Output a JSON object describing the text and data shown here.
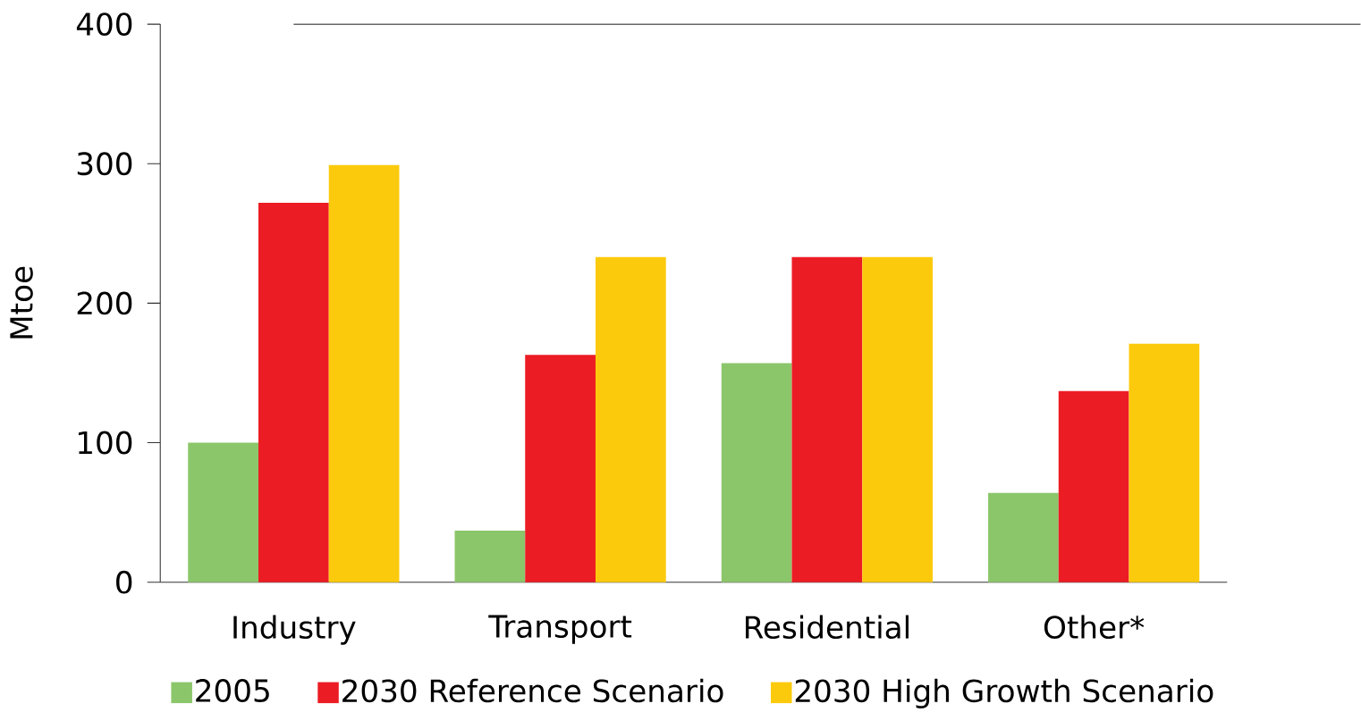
{
  "chart_data": {
    "type": "bar",
    "ylabel": "Mtoe",
    "categories": [
      "Industry",
      "Transport",
      "Residential",
      "Other*"
    ],
    "series": [
      {
        "name": "2005",
        "color": "#8cc66a",
        "values": [
          100,
          37,
          157,
          64
        ]
      },
      {
        "name": "2030 Reference Scenario",
        "color": "#ec1c24",
        "values": [
          272,
          163,
          233,
          137
        ]
      },
      {
        "name": "2030 High Growth Scenario",
        "color": "#fcca0c",
        "values": [
          299,
          233,
          233,
          171
        ]
      }
    ],
    "ylim": [
      0,
      400
    ],
    "yticks": [
      0,
      100,
      200,
      300,
      400
    ],
    "grid": false,
    "legend": "bottom"
  }
}
